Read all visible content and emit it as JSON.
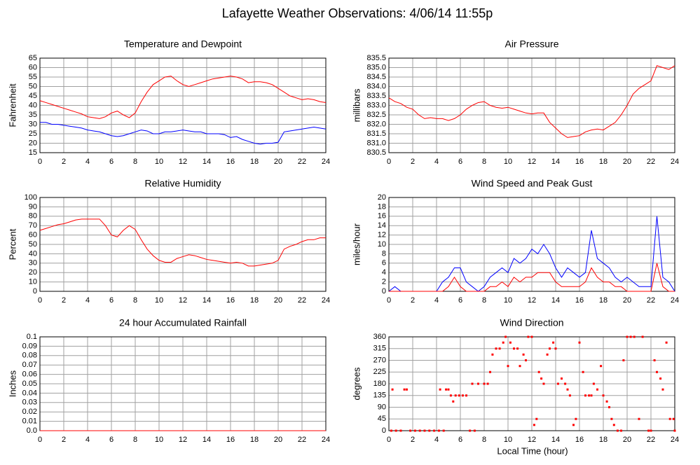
{
  "title": "Lafayette Weather Observations: 4/06/14 11:55p",
  "xlabel": "Local Time (hour)",
  "chart_data": [
    {
      "type": "line",
      "title": "Temperature and Dewpoint",
      "ylabel": "Fahrenheit",
      "x": [
        0,
        0.5,
        1,
        1.5,
        2,
        2.5,
        3,
        3.5,
        4,
        4.5,
        5,
        5.5,
        6,
        6.5,
        7,
        7.5,
        8,
        8.5,
        9,
        9.5,
        10,
        10.5,
        11,
        11.5,
        12,
        12.5,
        13,
        13.5,
        14,
        14.5,
        15,
        15.5,
        16,
        16.5,
        17,
        17.5,
        18,
        18.5,
        19,
        19.5,
        20,
        20.5,
        21,
        21.5,
        22,
        22.5,
        23,
        23.5,
        24
      ],
      "series": [
        {
          "color": "#ff0000",
          "values": [
            42.5,
            41.5,
            40.5,
            39.5,
            38.5,
            37.5,
            36.5,
            35.5,
            34,
            33.5,
            33,
            34,
            36,
            37,
            35,
            33.5,
            36,
            42,
            47,
            51,
            53,
            55,
            55.5,
            53,
            51,
            50,
            51,
            52,
            53,
            54,
            54.5,
            55,
            55.5,
            55,
            54,
            52,
            52.5,
            52.5,
            52,
            51,
            49,
            47,
            45,
            44,
            43,
            43.5,
            43,
            42,
            41.5
          ]
        },
        {
          "color": "#0000ff",
          "values": [
            31,
            31,
            30,
            30,
            29.5,
            29,
            28.5,
            28,
            27,
            26.5,
            26,
            25,
            24,
            23.5,
            24,
            25,
            26,
            27,
            26.5,
            25,
            25,
            26,
            26,
            26.5,
            27,
            26.5,
            26,
            26,
            25,
            25,
            25,
            24.5,
            23,
            23.5,
            22,
            21,
            20,
            19.5,
            20,
            20,
            20.5,
            26,
            26.5,
            27,
            27.5,
            28,
            28.5,
            28,
            27.5
          ]
        }
      ],
      "xlim": [
        0,
        24
      ],
      "xticks": [
        0,
        2,
        4,
        6,
        8,
        10,
        12,
        14,
        16,
        18,
        20,
        22,
        24
      ],
      "ylim": [
        15,
        65
      ],
      "yticks": [
        15,
        20,
        25,
        30,
        35,
        40,
        45,
        50,
        55,
        60,
        65
      ],
      "grid": true
    },
    {
      "type": "line",
      "title": "Air Pressure",
      "ylabel": "millibars",
      "x": [
        0,
        0.5,
        1,
        1.5,
        2,
        2.5,
        3,
        3.5,
        4,
        4.5,
        5,
        5.5,
        6,
        6.5,
        7,
        7.5,
        8,
        8.5,
        9,
        9.5,
        10,
        10.5,
        11,
        11.5,
        12,
        12.5,
        13,
        13.5,
        14,
        14.5,
        15,
        15.5,
        16,
        16.5,
        17,
        17.5,
        18,
        18.5,
        19,
        19.5,
        20,
        20.5,
        21,
        21.5,
        22,
        22.5,
        23,
        23.5,
        24
      ],
      "series": [
        {
          "color": "#ff0000",
          "values": [
            833.4,
            833.2,
            833.1,
            832.9,
            832.8,
            832.5,
            832.3,
            832.35,
            832.3,
            832.3,
            832.2,
            832.3,
            832.5,
            832.8,
            833.0,
            833.15,
            833.2,
            833.0,
            832.9,
            832.85,
            832.9,
            832.8,
            832.7,
            832.6,
            832.55,
            832.6,
            832.6,
            832.1,
            831.8,
            831.5,
            831.3,
            831.35,
            831.4,
            831.6,
            831.7,
            831.75,
            831.7,
            831.9,
            832.1,
            832.5,
            833.0,
            833.6,
            833.9,
            834.1,
            834.3,
            835.1,
            835.0,
            834.9,
            835.1
          ]
        }
      ],
      "xlim": [
        0,
        24
      ],
      "xticks": [
        0,
        2,
        4,
        6,
        8,
        10,
        12,
        14,
        16,
        18,
        20,
        22,
        24
      ],
      "ylim": [
        830.5,
        835.5
      ],
      "yticks": [
        830.5,
        {
          "value": 831,
          "label": "831.0"
        },
        831.5,
        {
          "value": 832,
          "label": "832.0"
        },
        832.5,
        {
          "value": 833,
          "label": "833.0"
        },
        833.5,
        {
          "value": 834,
          "label": "834.0"
        },
        834.5,
        {
          "value": 835,
          "label": "835.0"
        },
        835.5
      ],
      "grid": true
    },
    {
      "type": "line",
      "title": "Relative Humidity",
      "ylabel": "Percent",
      "x": [
        0,
        0.5,
        1,
        1.5,
        2,
        2.5,
        3,
        3.5,
        4,
        4.5,
        5,
        5.5,
        6,
        6.5,
        7,
        7.5,
        8,
        8.5,
        9,
        9.5,
        10,
        10.5,
        11,
        11.5,
        12,
        12.5,
        13,
        13.5,
        14,
        14.5,
        15,
        15.5,
        16,
        16.5,
        17,
        17.5,
        18,
        18.5,
        19,
        19.5,
        20,
        20.5,
        21,
        21.5,
        22,
        22.5,
        23,
        23.5,
        24
      ],
      "series": [
        {
          "color": "#ff0000",
          "values": [
            65,
            67,
            69,
            71,
            72,
            74,
            76,
            77,
            77,
            77,
            77,
            70,
            60,
            58,
            65,
            70,
            66,
            55,
            45,
            38,
            33,
            31,
            31,
            35,
            37,
            39,
            38,
            36,
            34,
            33,
            32,
            31,
            30,
            31,
            30,
            27,
            27,
            28,
            29,
            30,
            33,
            45,
            48,
            50,
            53,
            55,
            55,
            57,
            57
          ]
        }
      ],
      "xlim": [
        0,
        24
      ],
      "xticks": [
        0,
        2,
        4,
        6,
        8,
        10,
        12,
        14,
        16,
        18,
        20,
        22,
        24
      ],
      "ylim": [
        0,
        100
      ],
      "yticks": [
        0,
        10,
        20,
        30,
        40,
        50,
        60,
        70,
        80,
        90,
        100
      ],
      "grid": true
    },
    {
      "type": "line",
      "title": "Wind Speed and Peak Gust",
      "ylabel": "miles/hour",
      "x": [
        0,
        0.5,
        1,
        1.5,
        2,
        2.5,
        3,
        3.5,
        4,
        4.5,
        5,
        5.5,
        6,
        6.5,
        7,
        7.5,
        8,
        8.5,
        9,
        9.5,
        10,
        10.5,
        11,
        11.5,
        12,
        12.5,
        13,
        13.5,
        14,
        14.5,
        15,
        15.5,
        16,
        16.5,
        17,
        17.5,
        18,
        18.5,
        19,
        19.5,
        20,
        20.5,
        21,
        21.5,
        22,
        22.5,
        23,
        23.5,
        24
      ],
      "series": [
        {
          "color": "#0000ff",
          "values": [
            0,
            1,
            0,
            0,
            0,
            0,
            0,
            0,
            0,
            2,
            3,
            5,
            5,
            2,
            1,
            0,
            1,
            3,
            4,
            5,
            4,
            7,
            6,
            7,
            9,
            8,
            10,
            8,
            5,
            3,
            5,
            4,
            3,
            4,
            13,
            7,
            6,
            5,
            3,
            2,
            3,
            2,
            1,
            1,
            1,
            16,
            3,
            2,
            0
          ]
        },
        {
          "color": "#ff0000",
          "values": [
            0,
            0,
            0,
            0,
            0,
            0,
            0,
            0,
            0,
            0,
            1,
            3,
            1,
            0,
            0,
            0,
            0,
            1,
            1,
            2,
            1,
            3,
            2,
            3,
            3,
            4,
            4,
            4,
            2,
            1,
            1,
            1,
            1,
            2,
            5,
            3,
            2,
            2,
            1,
            1,
            0,
            0,
            0,
            0,
            0,
            6,
            1,
            0,
            0
          ]
        }
      ],
      "xlim": [
        0,
        24
      ],
      "xticks": [
        0,
        2,
        4,
        6,
        8,
        10,
        12,
        14,
        16,
        18,
        20,
        22,
        24
      ],
      "ylim": [
        0,
        20
      ],
      "yticks": [
        0,
        2,
        4,
        6,
        8,
        10,
        12,
        14,
        16,
        18,
        20
      ],
      "grid": true
    },
    {
      "type": "line",
      "title": "24 hour Accumulated Rainfall",
      "ylabel": "Inches",
      "x": [
        0,
        24
      ],
      "series": [
        {
          "color": "#ff0000",
          "values": [
            0,
            0
          ]
        }
      ],
      "xlim": [
        0,
        24
      ],
      "xticks": [
        0,
        2,
        4,
        6,
        8,
        10,
        12,
        14,
        16,
        18,
        20,
        22,
        24
      ],
      "ylim": [
        0,
        0.1
      ],
      "yticks": [
        {
          "value": 0,
          "label": "0.0"
        },
        0.01,
        0.02,
        0.03,
        0.04,
        0.05,
        0.06,
        0.07,
        0.08,
        0.09,
        0.1
      ],
      "grid": true
    },
    {
      "type": "scatter",
      "title": "Wind Direction",
      "ylabel": "degrees",
      "color": "#ff0000",
      "x": [
        0.2,
        0.3,
        0.6,
        1,
        1.3,
        1.5,
        1.8,
        2.2,
        2.6,
        3,
        3.4,
        3.8,
        4.2,
        4.3,
        4.6,
        4.8,
        5,
        5.2,
        5.4,
        5.6,
        5.9,
        6.2,
        6.5,
        6.8,
        7,
        7.2,
        7.5,
        8,
        8.3,
        8.5,
        8.7,
        9,
        9.3,
        9.6,
        9.8,
        10,
        10.2,
        10.5,
        10.8,
        11,
        11.3,
        11.5,
        11.7,
        12,
        12.2,
        12.4,
        12.6,
        12.8,
        13,
        13.3,
        13.5,
        13.8,
        14,
        14.2,
        14.5,
        14.8,
        15,
        15.2,
        15.5,
        15.7,
        16,
        16.3,
        16.5,
        16.8,
        17,
        17.2,
        17.5,
        17.8,
        18,
        18.3,
        18.5,
        18.7,
        18.9,
        19.2,
        19.5,
        19.7,
        20,
        20.3,
        20.6,
        21,
        21.3,
        21.8,
        22,
        22.3,
        22.5,
        22.8,
        23,
        23.3,
        23.6,
        23.9,
        24
      ],
      "values": [
        0,
        158,
        0,
        0,
        158,
        158,
        0,
        0,
        0,
        0,
        0,
        0,
        0,
        158,
        0,
        158,
        158,
        135,
        112,
        135,
        135,
        135,
        135,
        0,
        180,
        0,
        180,
        180,
        180,
        225,
        292,
        315,
        315,
        338,
        360,
        248,
        338,
        315,
        315,
        248,
        292,
        270,
        360,
        360,
        22,
        45,
        225,
        200,
        180,
        292,
        315,
        338,
        315,
        180,
        200,
        180,
        158,
        135,
        22,
        45,
        338,
        225,
        135,
        135,
        135,
        180,
        158,
        248,
        135,
        112,
        90,
        45,
        22,
        0,
        0,
        270,
        360,
        360,
        360,
        45,
        360,
        0,
        0,
        270,
        225,
        200,
        158,
        338,
        45,
        45,
        0
      ],
      "xlim": [
        0,
        24
      ],
      "xticks": [
        0,
        2,
        4,
        6,
        8,
        10,
        12,
        14,
        16,
        18,
        20,
        22,
        24
      ],
      "ylim": [
        0,
        360
      ],
      "yticks": [
        0,
        45,
        90,
        135,
        180,
        225,
        270,
        315,
        360
      ],
      "grid": true
    }
  ]
}
